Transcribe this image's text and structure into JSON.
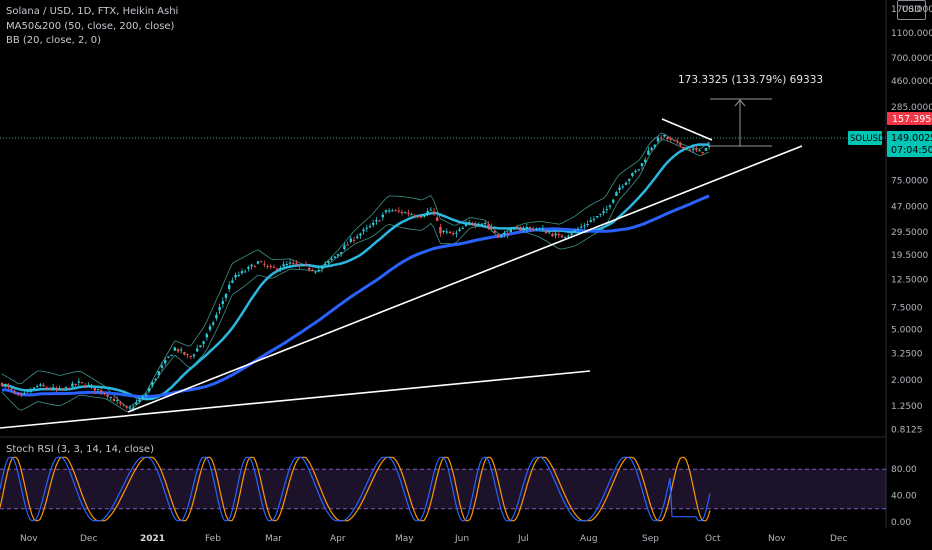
{
  "legend": {
    "symbol_line": "Solana / USD, 1D, FTX, Heikin Ashi",
    "ma_line": "MA50&200 (50, close, 200, close)",
    "bb_line": "BB (20, close, 2, 0)"
  },
  "rsi_legend": "Stoch RSI (3, 3, 14, 14, close)",
  "axis": {
    "currency_box": "USD",
    "price_ticks": [
      "1700.0000",
      "1100.0000",
      "700.0000",
      "460.0000",
      "285.0000",
      "75.0000",
      "47.0000",
      "29.5000",
      "19.5000",
      "12.5000",
      "7.5000",
      "5.0000",
      "3.2500",
      "2.0000",
      "1.2500",
      "0.8125"
    ],
    "rsi_ticks": [
      "80.00",
      "40.00",
      "0.00"
    ],
    "time_ticks": [
      "Nov",
      "Dec",
      "2021",
      "Feb",
      "Mar",
      "Apr",
      "May",
      "Jun",
      "Jul",
      "Aug",
      "Sep",
      "Oct",
      "Nov",
      "Dec"
    ]
  },
  "labels": {
    "last_price": "157.3950",
    "symbol": "SOLUSD",
    "ask_price": "149.0025",
    "countdown": "07:04:50",
    "measure": "173.3325 (133.79%) 69333"
  },
  "colors": {
    "up": "#26a69a",
    "up_body": "#2ec9d6",
    "down": "#ef5350",
    "ma50": "#2bb8e0",
    "ma200": "#2962ff",
    "bb": "#4db6ac",
    "rsi_k": "#2962ff",
    "rsi_d": "#ff9800",
    "rsi_band": "#7e57c2",
    "price_label": "#f23645",
    "symbol_label": "#00c6b5"
  },
  "chart_data": {
    "type": "candlestick",
    "scale": "log",
    "price_samples": [
      {
        "x": "Nov",
        "y": 1.7
      },
      {
        "x": "Dec",
        "y": 1.9
      },
      {
        "x": "2021",
        "y": 1.5
      },
      {
        "x": "Feb",
        "y": 5.0
      },
      {
        "x": "Mar",
        "y": 15.0
      },
      {
        "x": "Apr",
        "y": 18.0
      },
      {
        "x": "May",
        "y": 42.0
      },
      {
        "x": "Jun",
        "y": 33.0
      },
      {
        "x": "Jul",
        "y": 29.0
      },
      {
        "x": "Aug",
        "y": 38.0
      },
      {
        "x": "Sep",
        "y": 160.0
      },
      {
        "x": "Oct",
        "y": 149.0
      }
    ],
    "stoch_rsi_range": [
      0,
      100
    ],
    "stoch_rsi_bands": [
      20,
      80
    ]
  }
}
